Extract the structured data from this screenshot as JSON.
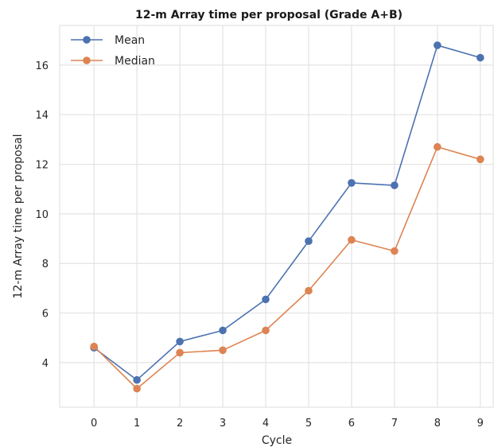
{
  "chart_data": {
    "type": "line",
    "title": "12-m Array time per proposal (Grade A+B)",
    "xlabel": "Cycle",
    "ylabel": "12-m Array time per proposal",
    "x": [
      0,
      1,
      2,
      3,
      4,
      5,
      6,
      7,
      8,
      9
    ],
    "xlim": [
      -0.8,
      9.3
    ],
    "ylim": [
      2.2,
      17.6
    ],
    "xticks": [
      0,
      1,
      2,
      3,
      4,
      5,
      6,
      7,
      8,
      9
    ],
    "yticks": [
      4,
      6,
      8,
      10,
      12,
      14,
      16
    ],
    "grid": true,
    "legend_position": "top-left",
    "series": [
      {
        "name": "Mean",
        "color": "#4c72b0",
        "values": [
          4.6,
          3.3,
          4.85,
          5.3,
          6.55,
          8.9,
          11.25,
          11.15,
          16.8,
          16.3
        ]
      },
      {
        "name": "Median",
        "color": "#dd8452",
        "values": [
          4.65,
          2.95,
          4.4,
          4.5,
          5.3,
          6.9,
          8.95,
          8.5,
          12.7,
          12.2
        ]
      }
    ]
  }
}
